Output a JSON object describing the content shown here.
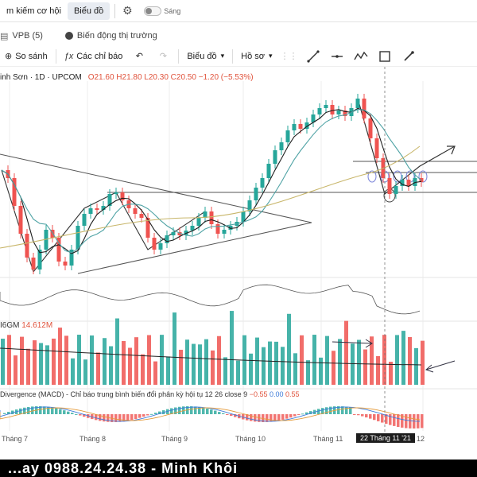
{
  "topbar": {
    "tabs": [
      "m kiếm cơ hội",
      "Biểu đồ"
    ],
    "toggle_label": "Sáng"
  },
  "subtabs": [
    "VPB (5)",
    "Biến động thị trường"
  ],
  "toolbar": {
    "compare_label": "So sánh",
    "indicators_label": "Các chỉ báo",
    "chart_type_label": "Biểu đồ",
    "template_label": "Hồ sơ"
  },
  "legend": {
    "symbol": "inh Sơn · 1D · UPCOM",
    "ohlc": "O21.60 H21.80 L20.30 C20.50 −1.20 (−5.53%)"
  },
  "volume": {
    "label": "I6GM",
    "value": "14.612M"
  },
  "macd": {
    "title": "Divergence (MACD) - Chỉ báo trung bình biến đổi phân kỳ hội tụ 12 26 close 9",
    "val1": "−0.55",
    "val2": "0.00",
    "val3": "0.55"
  },
  "xaxis": {
    "labels": [
      "Tháng 7",
      "Tháng 8",
      "Tháng 9",
      "Tháng 10",
      "Tháng 11",
      "12"
    ],
    "cursor_date": "22 Tháng 11 '21"
  },
  "footer": {
    "text": "...ay 0988.24.24.38 - Minh Khôi"
  },
  "colors": {
    "up": "#26a69a",
    "down": "#ef5350",
    "ma_dark": "#1d1d1d",
    "ma_teal": "#4fa3a5",
    "ma_olive": "#c8b66a"
  }
}
